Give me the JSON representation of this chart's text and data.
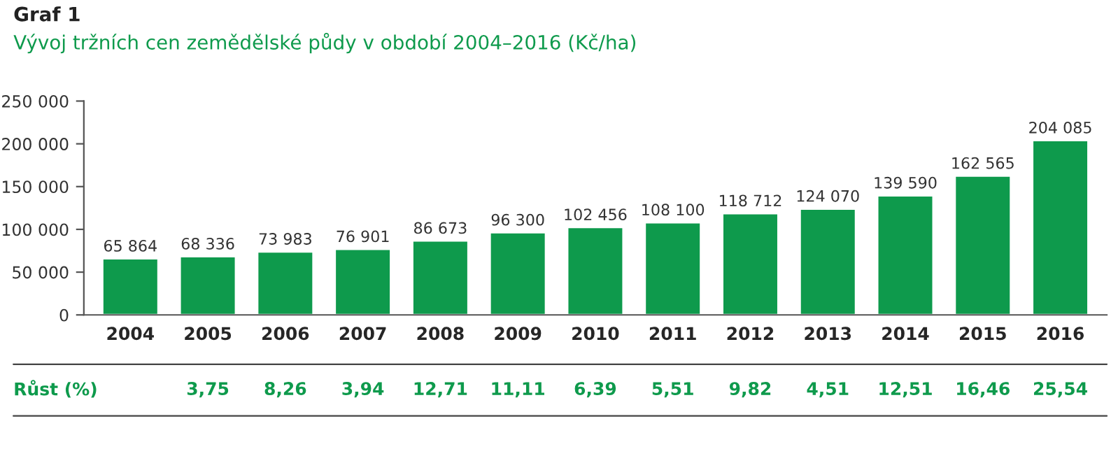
{
  "chart_data": {
    "type": "bar",
    "title": "Graf 1",
    "subtitle": "Vývoj tržních cen zemědělské půdy v období 2004–2016 (Kč/ha)",
    "categories": [
      "2004",
      "2005",
      "2006",
      "2007",
      "2008",
      "2009",
      "2010",
      "2011",
      "2012",
      "2013",
      "2014",
      "2015",
      "2016"
    ],
    "values": [
      65864,
      68336,
      73983,
      76901,
      86673,
      96300,
      102456,
      108100,
      118712,
      124070,
      139590,
      162565,
      204085
    ],
    "value_labels": [
      "65 864",
      "68 336",
      "73 983",
      "76 901",
      "86 673",
      "96 300",
      "102 456",
      "108 100",
      "118 712",
      "124 070",
      "139 590",
      "162 565",
      "204 085"
    ],
    "color": "#0e9a4c",
    "ylim": [
      0,
      250000
    ],
    "yticks": [
      {
        "value": 0,
        "label": "0"
      },
      {
        "value": 50000,
        "label": "50 000"
      },
      {
        "value": 100000,
        "label": "100 000"
      },
      {
        "value": 150000,
        "label": "150 000"
      },
      {
        "value": 200000,
        "label": "200 000"
      },
      {
        "value": 250000,
        "label": "250 000"
      }
    ],
    "grid": false,
    "annotations": [
      "Růst (%)",
      "3,75",
      "8,26",
      "3,94",
      "12,71",
      "11,11",
      "6,39",
      "5,51",
      "9,82",
      "4,51",
      "12,51",
      "16,46",
      "25,54"
    ]
  }
}
